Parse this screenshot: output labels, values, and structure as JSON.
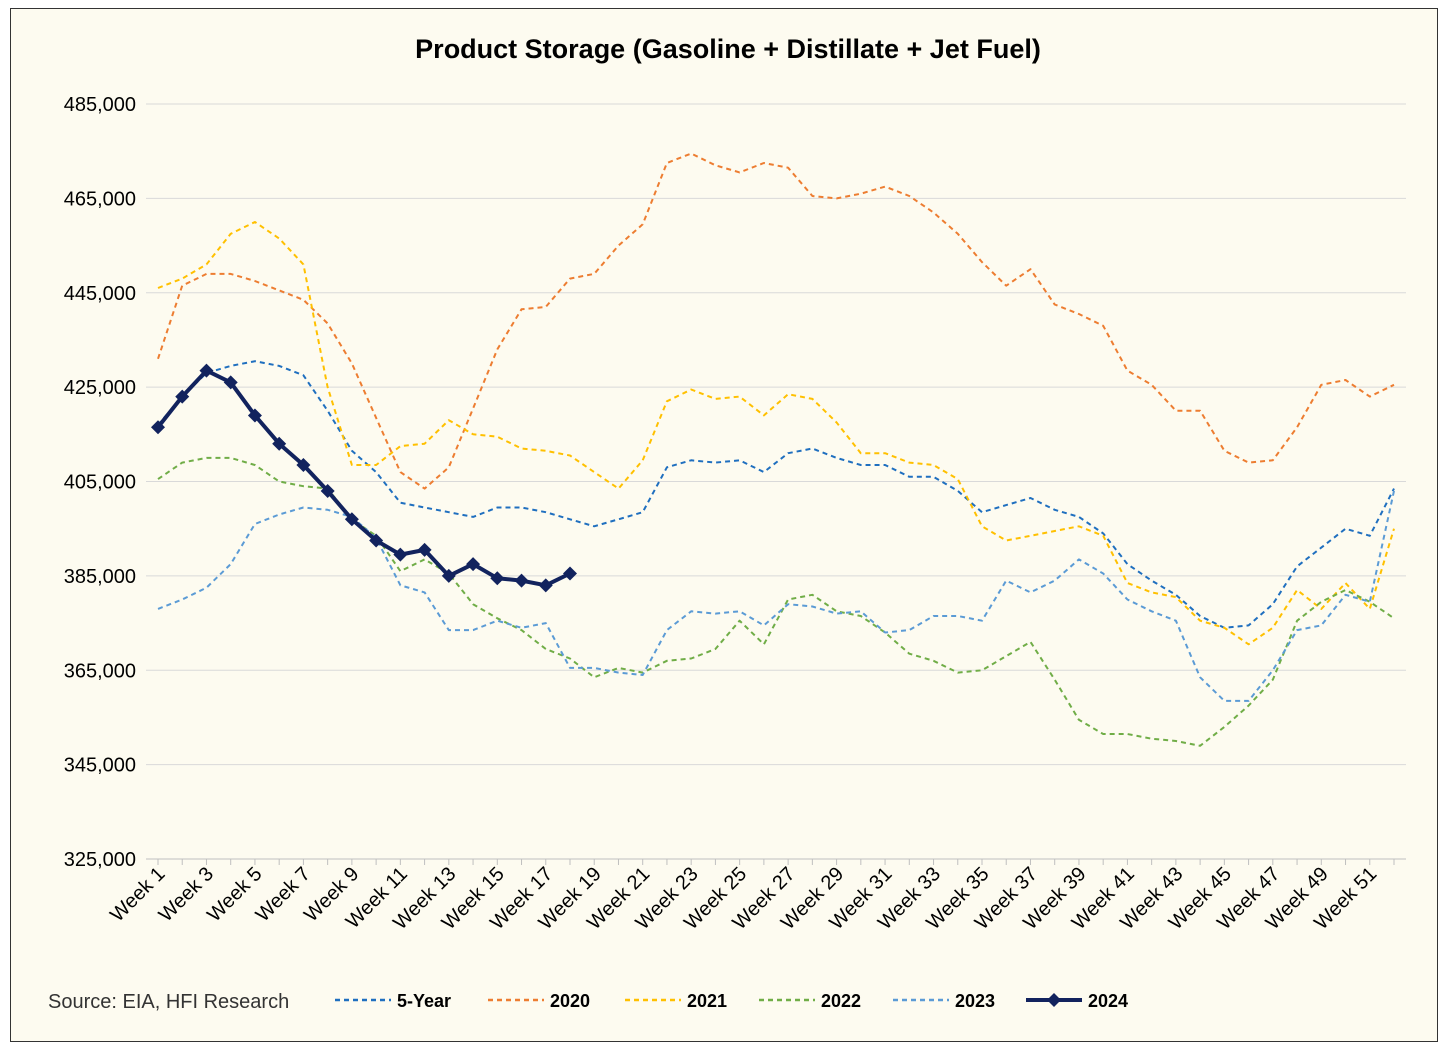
{
  "chart_data": {
    "type": "line",
    "title": "Product Storage (Gasoline + Distillate + Jet Fuel)",
    "source": "Source: EIA, HFI Research",
    "ylim": [
      325000,
      485000
    ],
    "yticks": [
      "485,000",
      "465,000",
      "445,000",
      "425,000",
      "405,000",
      "385,000",
      "365,000",
      "345,000",
      "325,000"
    ],
    "ytick_values": [
      485000,
      465000,
      445000,
      425000,
      405000,
      385000,
      365000,
      345000,
      325000
    ],
    "xtick_labels": [
      "Week 1",
      "Week 3",
      "Week 5",
      "Week 7",
      "Week 9",
      "Week 11",
      "Week 13",
      "Week 15",
      "Week 17",
      "Week 19",
      "Week 21",
      "Week 23",
      "Week 25",
      "Week 27",
      "Week 29",
      "Week 31",
      "Week 33",
      "Week 35",
      "Week 37",
      "Week 39",
      "Week 41",
      "Week 43",
      "Week 45",
      "Week 47",
      "Week 49",
      "Week 51"
    ],
    "xtick_weeks": [
      1,
      3,
      5,
      7,
      9,
      11,
      13,
      15,
      17,
      19,
      21,
      23,
      25,
      27,
      29,
      31,
      33,
      35,
      37,
      39,
      41,
      43,
      45,
      47,
      49,
      51
    ],
    "x_range": [
      1,
      52
    ],
    "grid": true,
    "legend_position": "bottom",
    "series": [
      {
        "name": "5-Year",
        "color": "#1f6fbf",
        "dash": "dashed",
        "values": [
          417000,
          423000,
          428000,
          429500,
          430500,
          429500,
          427500,
          420000,
          411500,
          407000,
          400500,
          399500,
          398500,
          397500,
          399500,
          399500,
          398500,
          397000,
          395500,
          397000,
          398500,
          408000,
          409500,
          409000,
          409500,
          407000,
          411000,
          412000,
          410000,
          408500,
          408500,
          406000,
          406000,
          403000,
          398500,
          400000,
          401500,
          399000,
          397500,
          394000,
          387500,
          384000,
          381000,
          376500,
          374000,
          374500,
          379000,
          387000,
          391000,
          395000,
          393500,
          403500
        ]
      },
      {
        "name": "2020",
        "color": "#ed7d31",
        "dash": "dashed",
        "values": [
          431000,
          446500,
          449000,
          449000,
          447500,
          445500,
          443500,
          438500,
          430000,
          418500,
          407000,
          403500,
          408000,
          420500,
          433000,
          441500,
          442000,
          448000,
          449000,
          455000,
          459500,
          472500,
          474500,
          472000,
          470500,
          472500,
          471500,
          465500,
          465000,
          466000,
          467500,
          465500,
          462000,
          457500,
          451500,
          446500,
          450000,
          442500,
          440500,
          438000,
          428500,
          425500,
          420000,
          420000,
          411500,
          409000,
          409500,
          416500,
          425500,
          426500,
          423000,
          425500
        ]
      },
      {
        "name": "2021",
        "color": "#ffc000",
        "dash": "dashed",
        "values": [
          446000,
          448000,
          451000,
          457500,
          460000,
          456500,
          451000,
          425000,
          408500,
          408500,
          412500,
          413000,
          418000,
          415000,
          414500,
          412000,
          411500,
          410500,
          407000,
          403500,
          409500,
          422000,
          424500,
          422500,
          423000,
          419000,
          423500,
          422500,
          417500,
          411000,
          411000,
          409000,
          408500,
          405500,
          395500,
          392500,
          393500,
          394500,
          395500,
          393500,
          383500,
          381500,
          380500,
          375500,
          374000,
          370500,
          374000,
          382000,
          378000,
          383500,
          378000,
          395000
        ]
      },
      {
        "name": "2022",
        "color": "#70ad47",
        "dash": "dashed",
        "values": [
          405500,
          409000,
          410000,
          410000,
          408500,
          405000,
          404000,
          403500,
          397000,
          393500,
          386000,
          388500,
          385500,
          379000,
          376000,
          373500,
          369500,
          367500,
          363500,
          365500,
          364500,
          367000,
          367500,
          369500,
          375500,
          370500,
          380000,
          381000,
          377500,
          376500,
          373000,
          368500,
          367000,
          364500,
          365000,
          368000,
          371000,
          363000,
          354500,
          351500,
          351500,
          350500,
          350000,
          349000,
          353000,
          357500,
          363000,
          375500,
          379500,
          382000,
          379500,
          376000
        ]
      },
      {
        "name": "2023",
        "color": "#5b9bd5",
        "dash": "dashed",
        "values": [
          378000,
          380000,
          382500,
          387500,
          396000,
          398000,
          399500,
          399000,
          397500,
          393000,
          383000,
          381500,
          373500,
          373500,
          375500,
          374000,
          375000,
          365500,
          365500,
          364500,
          364000,
          373500,
          377500,
          377000,
          377500,
          374500,
          379000,
          378500,
          377000,
          377500,
          373000,
          373500,
          376500,
          376500,
          375500,
          384000,
          381500,
          384000,
          388500,
          385500,
          380000,
          377500,
          375500,
          363500,
          358500,
          358500,
          365000,
          373500,
          374500,
          381000,
          379500,
          403000
        ]
      },
      {
        "name": "2024",
        "color": "#12235e",
        "dash": "solid",
        "values": [
          416500,
          423000,
          428500,
          426000,
          419000,
          413000,
          408500,
          403000,
          397000,
          392500,
          389500,
          390500,
          385000,
          387500,
          384500,
          384000,
          383000,
          385500
        ]
      }
    ]
  }
}
